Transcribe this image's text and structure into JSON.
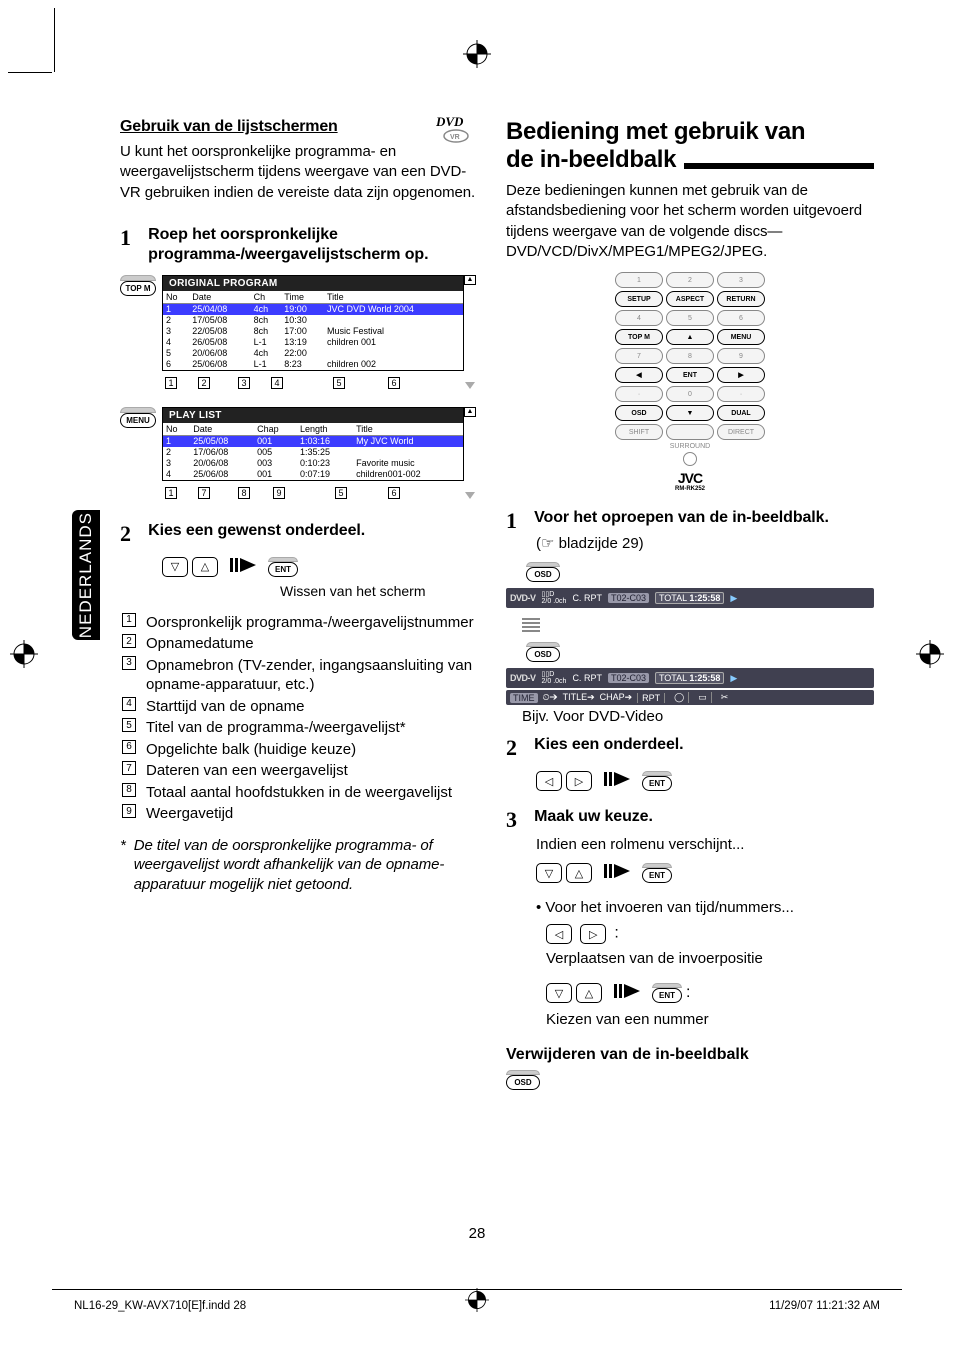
{
  "page": {
    "number": "28",
    "footer_left": "NL16-29_KW-AVX710[E]f.indd   28",
    "footer_right": "11/29/07   11:21:32 AM"
  },
  "sidetab": "NEDERLANDS",
  "left": {
    "title": "Gebruik van de lijstschermen",
    "intro": "U kunt het oorspronkelijke programma- en weergavelijstscherm tijdens weergave van een DVD-VR gebruiken indien de vereiste data zijn opgenomen.",
    "step1": "Roep het oorspronkelijke programma-/weergavelijstscherm op.",
    "topm_label": "TOP M",
    "menu_label": "MENU",
    "orig_title": "ORIGINAL PROGRAM",
    "orig_cols": [
      "No",
      "Date",
      "Ch",
      "Time",
      "Title"
    ],
    "orig_rows": [
      [
        "1",
        "25/04/08",
        "4ch",
        "19:00",
        "JVC DVD World 2004"
      ],
      [
        "2",
        "17/05/08",
        "8ch",
        "10:30",
        ""
      ],
      [
        "3",
        "22/05/08",
        "8ch",
        "17:00",
        "Music Festival"
      ],
      [
        "4",
        "26/05/08",
        "L-1",
        "13:19",
        "children 001"
      ],
      [
        "5",
        "20/06/08",
        "4ch",
        "22:00",
        ""
      ],
      [
        "6",
        "25/06/08",
        "L-1",
        "8:23",
        "children 002"
      ]
    ],
    "orig_callouts": [
      "1",
      "2",
      "3",
      "4",
      "5",
      "6"
    ],
    "play_title": "PLAY LIST",
    "play_cols": [
      "No",
      "Date",
      "Chap",
      "Length",
      "Title"
    ],
    "play_rows": [
      [
        "1",
        "25/05/08",
        "001",
        "1:03:16",
        "My JVC World"
      ],
      [
        "2",
        "17/06/08",
        "005",
        "1:35:25",
        ""
      ],
      [
        "3",
        "20/06/08",
        "003",
        "0:10:23",
        "Favorite music"
      ],
      [
        "4",
        "25/06/08",
        "001",
        "0:07:19",
        "children001-002"
      ]
    ],
    "play_callouts": [
      "1",
      "7",
      "8",
      "9",
      "5",
      "6"
    ],
    "step2": "Kies een gewenst onderdeel.",
    "ent_label": "ENT",
    "clear_caption": "Wissen van het scherm",
    "legend": [
      "Oorspronkelijk programma-/weergavelijstnummer",
      "Opnamedatume",
      "Opnamebron (TV-zender, ingangsaansluiting van opname-apparatuur, etc.)",
      "Starttijd van de opname",
      "Titel van de programma-/weergavelijst*",
      "Opgelichte balk (huidige keuze)",
      "Dateren van een weergavelijst",
      "Totaal aantal hoofdstukken in de weergavelijst",
      "Weergavetijd"
    ],
    "footnote_mark": "*",
    "footnote": "De titel van de oorspronkelijke programma- of weergavelijst wordt afhankelijk van de opname-apparatuur mogelijk niet getoond."
  },
  "right": {
    "heading": "Bediening met gebruik van de in-beeldbalk",
    "intro": "Deze bedieningen kunnen met gebruik van de afstandsbediening voor het scherm worden uitgevoerd tijdens weergave van de volgende discs—DVD/VCD/DivX/MPEG1/MPEG2/JPEG.",
    "remote": {
      "row1": [
        "1",
        "2",
        "3"
      ],
      "row2": [
        "SETUP",
        "ASPECT",
        "RETURN"
      ],
      "row3": [
        "4",
        "5",
        "6"
      ],
      "row4": [
        "TOP M",
        "▲",
        "MENU"
      ],
      "row5": [
        "7",
        "8",
        "9"
      ],
      "row6": [
        "◀",
        "ENT",
        "▶"
      ],
      "row7": [
        "·",
        "0",
        "·"
      ],
      "row8": [
        "OSD",
        "▼",
        "DUAL"
      ],
      "row9": [
        "SHIFT",
        "",
        "DIRECT"
      ],
      "surround": "SURROUND",
      "logo": "JVC",
      "model": "RM-RK252"
    },
    "step1": "Voor het oproepen van de in-beeldbalk.",
    "step1_ref_pre": "(☞ ",
    "step1_ref": "bladzijde 29)",
    "osd_label": "OSD",
    "bar1": {
      "dvdv": "DVD-V",
      "dd": "▯▯D",
      "ch": "2/0 .0ch",
      "crpt": "C. RPT",
      "tc": "T02-C03",
      "total": "TOTAL",
      "time": "1:25:58",
      "play": "▶"
    },
    "bar2_time": "TIME",
    "bar2_clock": "⏲➔",
    "bar2_title": "TITLE➔",
    "bar2_chap": "CHAP➔",
    "bar2_rpt": "RPT",
    "caption1": "Bijv. Voor DVD-Video",
    "step2": "Kies een onderdeel.",
    "ent_label": "ENT",
    "step3": "Maak uw keuze.",
    "step3_sub": "Indien een rolmenu verschijnt...",
    "bullet": "Voor het invoeren van tijd/nummers...",
    "move_caption": "Verplaatsen van de invoerpositie",
    "choose_caption": "Kiezen van een nummer",
    "remove_heading": "Verwijderen van de in-beeldbalk"
  }
}
